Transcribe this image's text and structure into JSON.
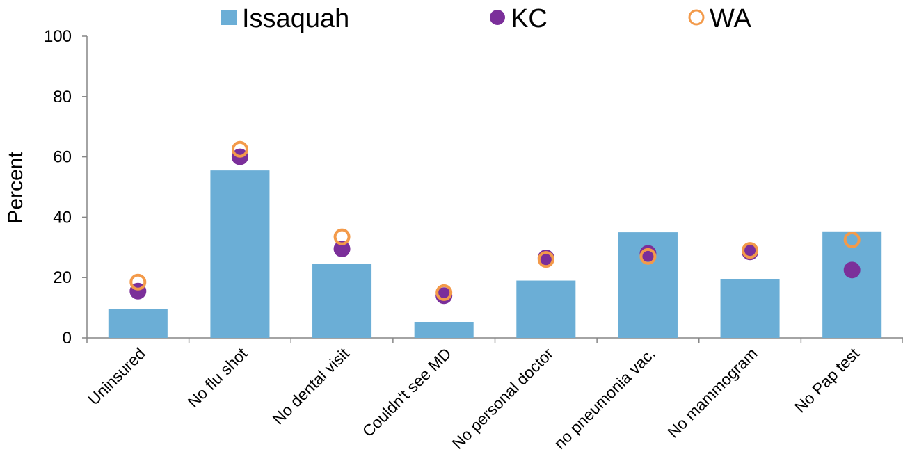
{
  "chart_data": {
    "type": "bar",
    "title": "",
    "xlabel": "",
    "ylabel": "Percent",
    "ylim": [
      0,
      100
    ],
    "yticks": [
      0,
      20,
      40,
      60,
      80,
      100
    ],
    "grid": false,
    "legend_position": "top",
    "categories": [
      "Uninsured",
      "No flu shot",
      "No dental visit",
      "Couldn't see MD",
      "No personal doctor",
      "no pneumonia vac.",
      "No mammogram",
      "No Pap test"
    ],
    "series": [
      {
        "name": "Issaquah",
        "kind": "bar",
        "color": "#6baed6",
        "values": [
          9.5,
          55.5,
          24.5,
          5.3,
          19.0,
          35.0,
          19.5,
          35.3
        ]
      },
      {
        "name": "KC",
        "kind": "filled-marker",
        "color": "#7b2f9a",
        "values": [
          15.5,
          60.0,
          29.5,
          14.0,
          26.5,
          28.0,
          28.5,
          22.5
        ]
      },
      {
        "name": "WA",
        "kind": "hollow-marker",
        "color": "#f39a4a",
        "values": [
          18.5,
          62.5,
          33.5,
          15.0,
          26.0,
          27.0,
          29.0,
          32.5
        ]
      }
    ]
  }
}
